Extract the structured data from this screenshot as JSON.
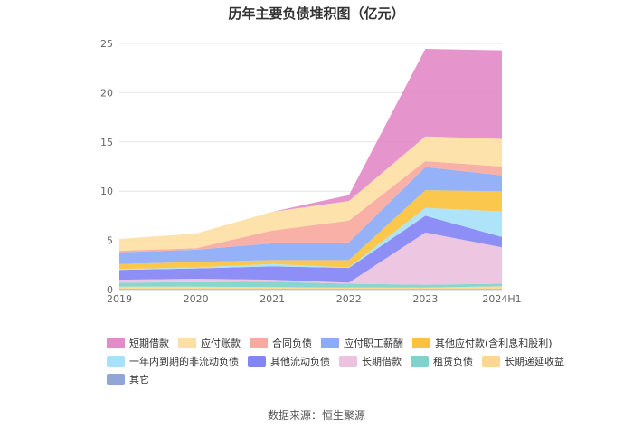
{
  "chart_data": {
    "type": "area",
    "stacked": true,
    "title": "历年主要负债堆积图（亿元）",
    "categories": [
      "2019",
      "2020",
      "2021",
      "2022",
      "2023",
      "2024H1"
    ],
    "ylim": [
      0,
      25
    ],
    "yticks": [
      0,
      5,
      10,
      15,
      20,
      25
    ],
    "grid": true,
    "series": [
      {
        "name": "其它",
        "color": "#8fa6d6",
        "values": [
          0.05,
          0.05,
          0.05,
          0.05,
          0.05,
          0.05
        ]
      },
      {
        "name": "长期递延收益",
        "color": "#fcd78f",
        "values": [
          0.25,
          0.25,
          0.2,
          0.15,
          0.15,
          0.3
        ]
      },
      {
        "name": "租赁负债",
        "color": "#7fd3cc",
        "values": [
          0.4,
          0.45,
          0.55,
          0.4,
          0.3,
          0.25
        ]
      },
      {
        "name": "长期借款",
        "color": "#ecc2de",
        "values": [
          0.3,
          0.35,
          0.2,
          0.1,
          5.3,
          3.7
        ]
      },
      {
        "name": "其他流动负债",
        "color": "#8385f5",
        "values": [
          1.0,
          1.05,
          1.35,
          1.5,
          1.7,
          1.05
        ]
      },
      {
        "name": "一年内到期的非流动负债",
        "color": "#a8e1fa",
        "values": [
          0.1,
          0.1,
          0.25,
          0.05,
          0.8,
          2.6
        ]
      },
      {
        "name": "其他应付款(含利息和股利)",
        "color": "#fcc23e",
        "values": [
          0.5,
          0.55,
          0.4,
          0.75,
          1.8,
          2.05
        ]
      },
      {
        "name": "应付职工薪酬",
        "color": "#8cabf7",
        "values": [
          1.2,
          1.25,
          1.7,
          1.8,
          2.35,
          1.6
        ]
      },
      {
        "name": "合同负债",
        "color": "#f8a9a0",
        "values": [
          0.15,
          0.15,
          1.3,
          2.2,
          0.6,
          0.9
        ]
      },
      {
        "name": "应付账款",
        "color": "#fddfa4",
        "values": [
          1.2,
          1.5,
          1.9,
          2.0,
          2.5,
          2.8
        ]
      },
      {
        "name": "短期借款",
        "color": "#e38bc8",
        "values": [
          0.0,
          0.0,
          0.0,
          0.6,
          8.9,
          9.0
        ]
      }
    ],
    "legend": {
      "rows": [
        [
          "短期借款",
          "应付账款",
          "合同负债",
          "应付职工薪酬",
          "其他应付款(含利息和股利)"
        ],
        [
          "一年内到期的非流动负债",
          "其他流动负债",
          "长期借款",
          "租赁负债",
          "长期递延收益"
        ],
        [
          "其它"
        ]
      ]
    },
    "source": "数据来源：恒生聚源"
  }
}
